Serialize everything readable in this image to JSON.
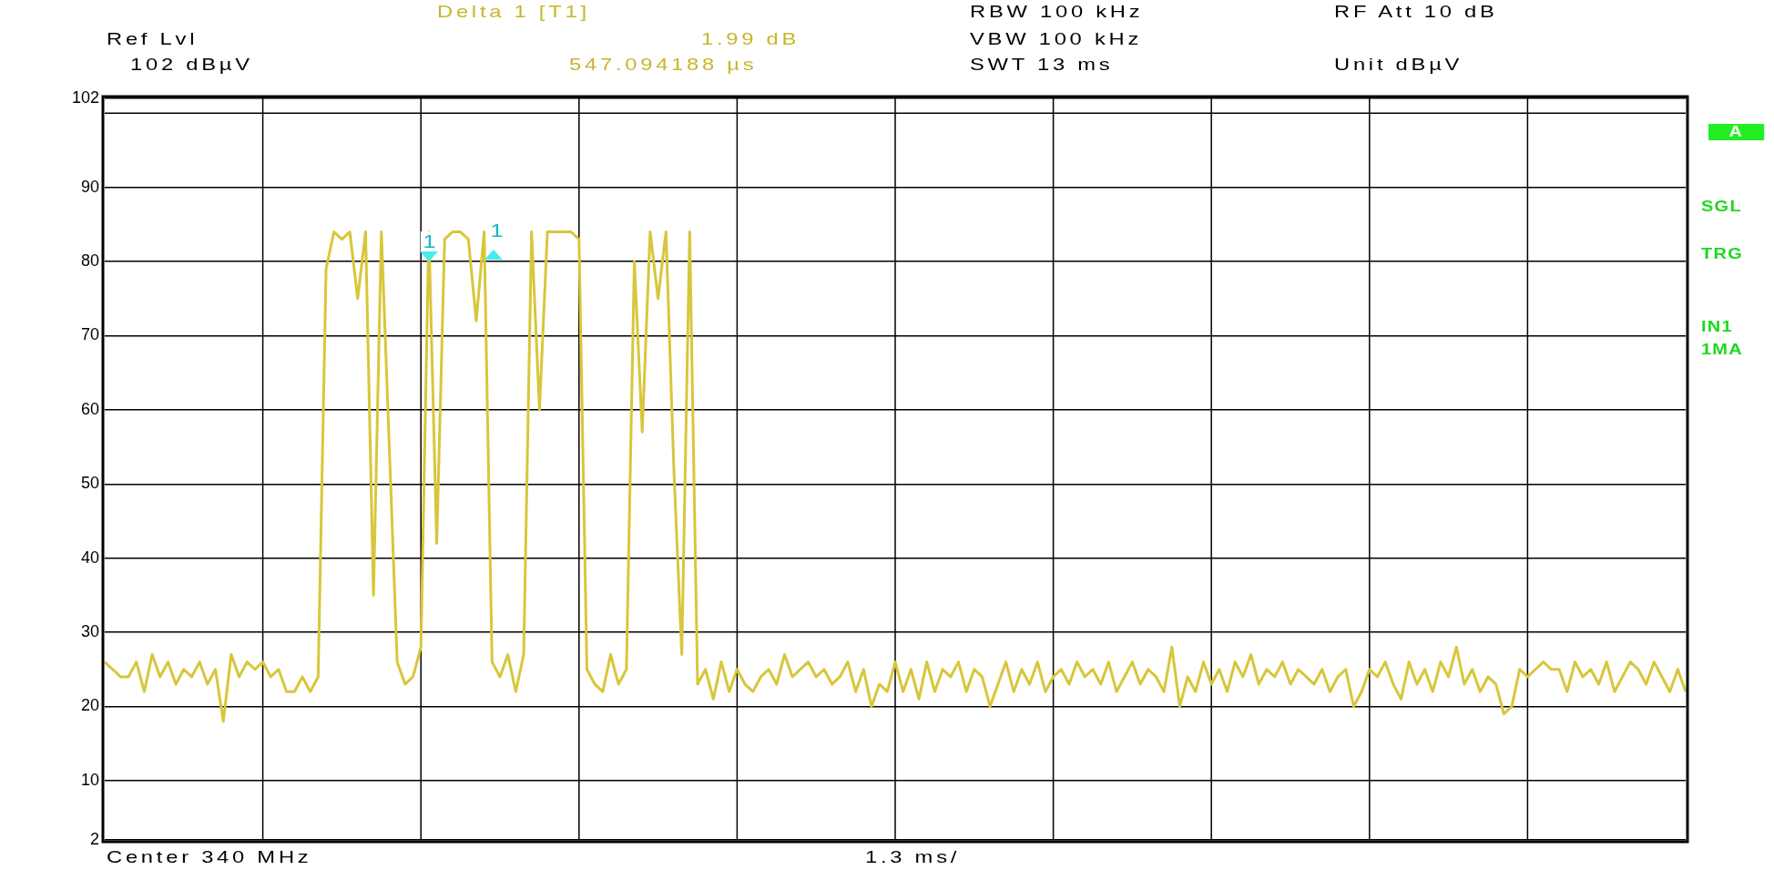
{
  "chart_data": {
    "type": "line",
    "ylim": [
      2,
      102
    ],
    "categories": [
      null,
      null,
      null,
      null,
      null,
      null,
      null,
      null,
      null,
      null,
      null,
      null,
      null,
      null,
      null,
      null,
      null,
      null,
      null,
      null,
      null,
      null,
      null,
      null,
      null,
      null,
      null,
      null,
      null,
      null,
      null,
      null,
      null,
      null,
      null,
      null,
      null,
      null,
      null,
      null,
      null,
      null,
      null,
      null,
      null,
      null,
      null,
      null,
      null,
      null,
      null,
      null,
      null,
      null,
      null,
      null,
      null,
      null,
      null,
      null,
      null,
      null,
      null,
      null,
      null,
      null,
      null,
      null,
      null,
      null,
      null,
      null,
      null,
      null,
      null,
      null,
      null,
      null,
      null,
      null,
      null,
      null,
      null,
      null,
      null,
      null,
      null,
      null,
      null,
      null,
      null,
      null,
      null,
      null,
      null,
      null,
      null,
      null,
      null,
      null,
      null,
      null,
      null,
      null,
      null,
      null,
      null,
      null,
      null,
      null,
      null,
      null,
      null,
      null,
      null,
      null,
      null,
      null,
      null,
      null,
      null,
      null,
      null,
      null,
      null,
      null,
      null,
      null,
      null,
      null,
      null,
      null,
      null,
      null,
      null,
      null,
      null,
      null,
      null,
      null,
      null,
      null,
      null,
      null,
      null,
      null,
      null,
      null,
      null,
      null,
      null,
      null,
      null,
      null,
      null,
      null,
      null,
      null,
      null,
      null,
      null,
      null,
      null,
      null,
      null,
      null,
      null,
      null,
      null,
      null,
      null,
      null,
      null,
      null,
      null,
      null,
      null,
      null,
      null,
      null,
      null,
      null,
      null,
      null,
      null,
      null,
      null,
      null,
      null,
      null,
      null,
      null,
      null,
      null,
      null,
      null,
      null,
      null,
      null,
      null,
      null
    ],
    "yticks": [
      2,
      10,
      20,
      30,
      40,
      50,
      60,
      70,
      80,
      90,
      102
    ],
    "tick_labels": "y",
    "grid": true,
    "legend": false,
    "marker": "none",
    "line_style": "solid",
    "ref_lines": [
      {
        "axis": "y",
        "value": 100,
        "color": "#000000"
      }
    ],
    "annotations": [
      "Delta 1 [T1]",
      "1.99 dB",
      "547.094188 µs",
      "Ref Lvl",
      "102 dBµV",
      "RBW 100 kHz",
      "VBW 100 kHz",
      "SWT 13 ms",
      "RF Att 10 dB",
      "Unit dBµV",
      "Center 340 MHz",
      "1.3 ms/",
      "A",
      "SGL",
      "TRG",
      "IN1",
      "1MA",
      "1",
      "1"
    ],
    "series": [
      {
        "color": "#d8c63a",
        "values": [
          26,
          25,
          24,
          24,
          26,
          22,
          27,
          24,
          26,
          23,
          25,
          24,
          26,
          23,
          25,
          18,
          27,
          24,
          26,
          25,
          26,
          24,
          25,
          22,
          22,
          24,
          22,
          24,
          79,
          84,
          83,
          84,
          75,
          84,
          35,
          84,
          55,
          26,
          23,
          24,
          28,
          84,
          42,
          83,
          84,
          84,
          83,
          72,
          84,
          26,
          24,
          27,
          22,
          27,
          84,
          60,
          84,
          84,
          84,
          84,
          83,
          25,
          23,
          22,
          27,
          23,
          25,
          80,
          57,
          84,
          75,
          84,
          52,
          27,
          84,
          23,
          25,
          21,
          26,
          22,
          25,
          23,
          22,
          24,
          25,
          23,
          27,
          24,
          25,
          26,
          24,
          25,
          23,
          24,
          26,
          22,
          25,
          20,
          23,
          22,
          26,
          22,
          25,
          21,
          26,
          22,
          25,
          24,
          26,
          22,
          25,
          24,
          20,
          23,
          26,
          22,
          25,
          23,
          26,
          22,
          24,
          25,
          23,
          26,
          24,
          25,
          23,
          26,
          22,
          24,
          26,
          23,
          25,
          24,
          22,
          28,
          20,
          24,
          22,
          26,
          23,
          25,
          22,
          26,
          24,
          27,
          23,
          25,
          24,
          26,
          23,
          25,
          24,
          23,
          25,
          22,
          24,
          25,
          20,
          22,
          25,
          24,
          26,
          23,
          21,
          26,
          23,
          25,
          22,
          26,
          24,
          28,
          23,
          25,
          22,
          24,
          23,
          19,
          20,
          25,
          24,
          25,
          26,
          25,
          25,
          22,
          26,
          24,
          25,
          23,
          26,
          22,
          24,
          26,
          25,
          23,
          26,
          24,
          22,
          25,
          22
        ]
      }
    ]
  }
}
